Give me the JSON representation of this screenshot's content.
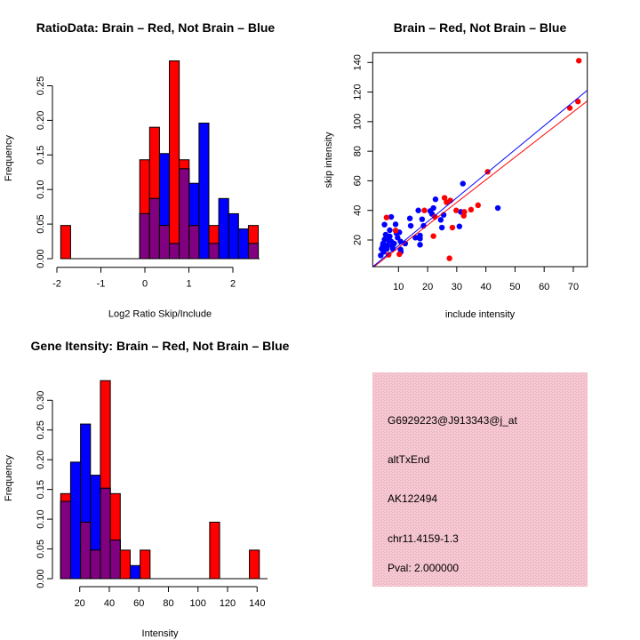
{
  "chart_data": [
    {
      "type": "bar",
      "subtype": "overlaid-histogram",
      "title": "RatioData: Brain – Red, Not Brain – Blue",
      "xlabel": "Log2 Ratio Skip/Include",
      "ylabel": "Frequency",
      "xlim": [
        -2,
        2.6
      ],
      "ylim": [
        0,
        0.29
      ],
      "xticks": [
        "-2",
        "-1",
        "0",
        "1",
        "2"
      ],
      "xtick_values": [
        -2,
        -1,
        0,
        1,
        2
      ],
      "yticks": [
        "0.00",
        "0.05",
        "0.10",
        "0.15",
        "0.20",
        "0.25"
      ],
      "ytick_values": [
        0,
        0.05,
        0.1,
        0.15,
        0.2,
        0.25
      ],
      "bin_start": -1.913,
      "bin_width": 0.2245,
      "series": [
        {
          "name": "Brain",
          "color": "#ff0000",
          "values": [
            0.048,
            0,
            0,
            0,
            0,
            0,
            0,
            0,
            0.143,
            0.19,
            0.048,
            0.286,
            0.143,
            0.048,
            0,
            0.048,
            0,
            0,
            0,
            0.048
          ]
        },
        {
          "name": "Not Brain",
          "color": "#0000ff",
          "values": [
            0,
            0,
            0,
            0,
            0,
            0,
            0,
            0,
            0.065,
            0.087,
            0.152,
            0.022,
            0.13,
            0.109,
            0.196,
            0.022,
            0.087,
            0.065,
            0.043,
            0.022
          ]
        }
      ],
      "overlap_color": "#800080"
    },
    {
      "type": "scatter",
      "title": "Brain – Red, Not Brain – Blue",
      "xlabel": "include intensity",
      "ylabel": "skip intensity",
      "xlim": [
        1.15,
        74.8
      ],
      "ylim": [
        1.97,
        146.6
      ],
      "xticks": [
        "10",
        "20",
        "30",
        "40",
        "50",
        "60",
        "70"
      ],
      "xtick_values": [
        10,
        20,
        30,
        40,
        50,
        60,
        70
      ],
      "yticks": [
        "20",
        "40",
        "60",
        "80",
        "100",
        "120",
        "140"
      ],
      "ytick_values": [
        20,
        40,
        60,
        80,
        100,
        120,
        140
      ],
      "series": [
        {
          "name": "Brain",
          "color": "#ff0000",
          "fit": {
            "slope": 1.53,
            "intercept": -0.5
          },
          "points": [
            [
              71.9,
              141.2
            ],
            [
              71.6,
              113.6
            ],
            [
              68.8,
              109.2
            ],
            [
              40.6,
              66.1
            ],
            [
              37.3,
              43.5
            ],
            [
              34.9,
              40.5
            ],
            [
              29.8,
              40
            ],
            [
              32.6,
              39
            ],
            [
              32.4,
              36.4
            ],
            [
              25.8,
              48.5
            ],
            [
              26.5,
              45.5
            ],
            [
              27.8,
              46.7
            ],
            [
              22.5,
              35.6
            ],
            [
              18.9,
              40
            ],
            [
              22.0,
              22.6
            ],
            [
              28.5,
              28.4
            ],
            [
              27.5,
              7.6
            ],
            [
              5.9,
              35.2
            ],
            [
              9.0,
              26.4
            ],
            [
              6.6,
              10.0
            ],
            [
              10.3,
              10.4
            ]
          ]
        },
        {
          "name": "Not Brain",
          "color": "#0000ff",
          "fit": {
            "slope": 1.62,
            "intercept": 0
          },
          "points": [
            [
              44.1,
              41.6
            ],
            [
              32.1,
              58.1
            ],
            [
              31.4,
              39
            ],
            [
              30.9,
              29.2
            ],
            [
              22.7,
              47.5
            ],
            [
              22.0,
              41.6
            ],
            [
              20.9,
              39.6
            ],
            [
              21.5,
              37.6
            ],
            [
              25.5,
              37.0
            ],
            [
              24.5,
              33.6
            ],
            [
              24.9,
              28.4
            ],
            [
              16.8,
              40
            ],
            [
              18.1,
              34
            ],
            [
              18.6,
              29.6
            ],
            [
              13.9,
              34.6
            ],
            [
              14.2,
              29.6
            ],
            [
              17.4,
              23.0
            ],
            [
              17.4,
              21.0
            ],
            [
              17.4,
              16.8
            ],
            [
              15.8,
              21.6
            ],
            [
              12.3,
              17.6
            ],
            [
              7.5,
              35.6
            ],
            [
              5.2,
              30.4
            ],
            [
              9.0,
              30.6
            ],
            [
              7.0,
              26.6
            ],
            [
              9.7,
              21.6
            ],
            [
              10.3,
              25.2
            ],
            [
              9.3,
              24.6
            ],
            [
              5.6,
              23.6
            ],
            [
              4.7,
              17.6
            ],
            [
              4.2,
              14
            ],
            [
              3.9,
              9.6
            ],
            [
              4.9,
              12
            ],
            [
              6.4,
              20
            ],
            [
              7.5,
              19
            ],
            [
              6.2,
              16.4
            ],
            [
              7.9,
              15.6
            ],
            [
              6.0,
              14
            ],
            [
              10.7,
              19
            ],
            [
              10.7,
              13.6
            ],
            [
              5.2,
              20.4
            ],
            [
              7.0,
              22.4
            ],
            [
              8.5,
              17.6
            ],
            [
              4.6,
              16
            ],
            [
              10.8,
              12
            ],
            [
              8.1,
              14
            ]
          ]
        }
      ]
    },
    {
      "type": "bar",
      "subtype": "overlaid-histogram",
      "title": "Gene Itensity: Brain – Red, Not Brain – Blue",
      "xlabel": "Intensity",
      "ylabel": "Frequency",
      "xlim": [
        7.1,
        141.5
      ],
      "ylim": [
        0,
        0.34
      ],
      "xticks": [
        "20",
        "40",
        "60",
        "80",
        "100",
        "120",
        "140"
      ],
      "xtick_values": [
        20,
        40,
        60,
        80,
        100,
        120,
        140
      ],
      "yticks": [
        "0.00",
        "0.05",
        "0.10",
        "0.15",
        "0.20",
        "0.25",
        "0.30"
      ],
      "ytick_values": [
        0,
        0.05,
        0.1,
        0.15,
        0.2,
        0.25,
        0.3
      ],
      "bin_start": 7.1,
      "bin_width": 6.72,
      "series": [
        {
          "name": "Brain",
          "color": "#ff0000",
          "values": [
            0.143,
            0,
            0.095,
            0.048,
            0.333,
            0.143,
            0.048,
            0,
            0.048,
            0,
            0,
            0,
            0,
            0,
            0,
            0.095,
            0,
            0,
            0,
            0.048,
            0
          ]
        },
        {
          "name": "Not Brain",
          "color": "#0000ff",
          "values": [
            0.13,
            0.196,
            0.26,
            0.174,
            0.152,
            0.065,
            0,
            0.022,
            0,
            0,
            0,
            0,
            0,
            0,
            0,
            0,
            0,
            0,
            0,
            0,
            0
          ]
        }
      ],
      "overlap_color": "#800080"
    }
  ],
  "info_panel": {
    "background": "#f2c4cf",
    "lines": [
      "G6929223@J913343@j_at",
      "altTxEnd",
      "AK122494",
      "chr11.4159-1.3"
    ],
    "pval": "Pval: 2.000000",
    "pval_color": "#990000"
  }
}
